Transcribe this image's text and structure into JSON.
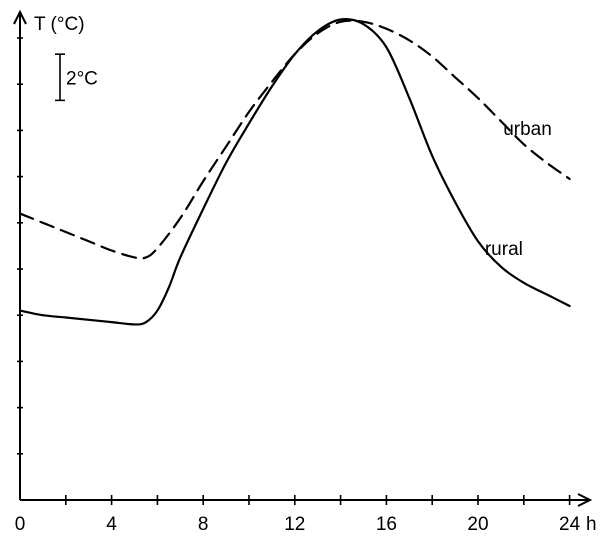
{
  "chart_data": {
    "type": "line",
    "ylabel": "T (°C)",
    "xlabel": "h",
    "x_ticks": [
      0,
      4,
      8,
      12,
      16,
      20,
      24
    ],
    "x_tick_labels": [
      "0",
      "4",
      "8",
      "12",
      "16",
      "20",
      "24"
    ],
    "xlim": [
      0,
      25
    ],
    "ylim": [
      0,
      21
    ],
    "scale_bar": {
      "label": "2°C",
      "from": 17.3,
      "to": 19.3
    },
    "grid": false,
    "series": [
      {
        "name": "urban",
        "style": "dashed",
        "x": [
          0,
          1,
          2,
          3,
          4,
          5,
          5.5,
          6,
          7,
          8,
          9,
          10,
          11,
          12,
          13,
          14,
          15,
          16,
          17,
          18,
          19,
          20,
          21,
          22,
          23,
          24
        ],
        "y": [
          12.4,
          12.0,
          11.6,
          11.2,
          10.8,
          10.5,
          10.5,
          10.9,
          12.2,
          13.8,
          15.3,
          16.8,
          18.1,
          19.3,
          20.2,
          20.7,
          20.7,
          20.4,
          19.9,
          19.2,
          18.3,
          17.4,
          16.4,
          15.4,
          14.6,
          13.9
        ],
        "label_position": "right-of-curve"
      },
      {
        "name": "rural",
        "style": "solid",
        "x": [
          0,
          1,
          2,
          3,
          4,
          5,
          5.5,
          6,
          6.5,
          7,
          8,
          9,
          10,
          11,
          12,
          13,
          14,
          15,
          16,
          17,
          18,
          19,
          20,
          21,
          22,
          23,
          24
        ],
        "y": [
          8.2,
          8.0,
          7.9,
          7.8,
          7.7,
          7.6,
          7.7,
          8.2,
          9.2,
          10.5,
          12.6,
          14.6,
          16.3,
          17.9,
          19.3,
          20.3,
          20.8,
          20.6,
          19.6,
          17.4,
          14.9,
          12.9,
          11.2,
          10.1,
          9.4,
          8.9,
          8.4
        ],
        "label_position": "below-curve"
      }
    ]
  }
}
